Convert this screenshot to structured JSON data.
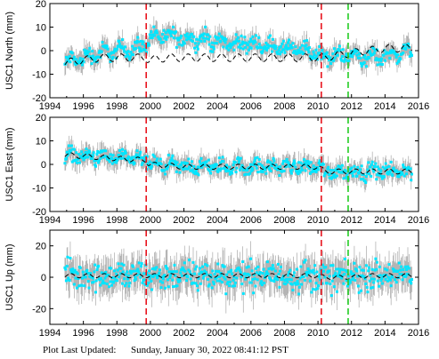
{
  "chart_data": [
    {
      "type": "scatter",
      "ylabel": "USC1 North (mm)",
      "xlim": [
        1994,
        2016
      ],
      "ylim": [
        -20,
        20
      ],
      "x_ticks": [
        "1994",
        "1996",
        "1998",
        "2000",
        "2002",
        "2004",
        "2006",
        "2008",
        "2010",
        "2012",
        "2014",
        "2016"
      ],
      "y_ticks": [
        "-20",
        "-10",
        "0",
        "10",
        "20"
      ],
      "series": [
        {
          "color": "#00e5ff",
          "x": [
            1995.0,
            1996.0,
            1997.0,
            1998.0,
            1999.0,
            1999.7,
            1999.9,
            2001.0,
            2002.0,
            2003.0,
            2004.0,
            2005.0,
            2006.0,
            2007.0,
            2008.0,
            2009.0,
            2010.0,
            2010.4,
            2011.0,
            2012.0,
            2013.0,
            2014.0,
            2015.0,
            2015.5
          ],
          "y": [
            -5,
            -3,
            -1,
            0,
            1,
            2,
            6,
            6,
            5,
            5,
            4,
            3,
            3,
            2,
            1,
            0,
            -1,
            -3,
            -2,
            -2,
            -3,
            -2,
            -1,
            0
          ]
        },
        {
          "color": "#000000",
          "x": [
            1995.0,
            1996.0,
            1997.0,
            1998.0,
            1999.0,
            1999.7,
            1999.9,
            2001.0,
            2002.0,
            2003.0,
            2004.0,
            2005.0,
            2006.0,
            2007.0,
            2008.0,
            2009.0,
            2010.0,
            2010.4,
            2011.0,
            2012.0,
            2013.0,
            2014.0,
            2015.0,
            2015.5
          ],
          "y": [
            -5,
            -4,
            -3,
            -3,
            -3,
            -3,
            -4,
            -3,
            -3,
            -3,
            -3,
            -3,
            -3,
            -3,
            -3,
            -3,
            -3,
            -3,
            -2,
            -1,
            0,
            1,
            1,
            1
          ]
        }
      ],
      "markers": [
        {
          "x": 1999.75,
          "color": "#e8141e"
        },
        {
          "x": 2010.2,
          "color": "#e8141e"
        },
        {
          "x": 2011.8,
          "color": "#22cc22"
        }
      ]
    },
    {
      "type": "scatter",
      "ylabel": "USC1 East (mm)",
      "xlim": [
        1994,
        2016
      ],
      "ylim": [
        -20,
        20
      ],
      "x_ticks": [
        "1994",
        "1996",
        "1998",
        "2000",
        "2002",
        "2004",
        "2006",
        "2008",
        "2010",
        "2012",
        "2014",
        "2016"
      ],
      "y_ticks": [
        "-20",
        "-10",
        "0",
        "10",
        "20"
      ],
      "series": [
        {
          "color": "#00e5ff",
          "x": [
            1995.0,
            1996.0,
            1997.0,
            1998.0,
            1999.0,
            1999.7,
            1999.9,
            2001.0,
            2002.0,
            2003.0,
            2004.0,
            2005.0,
            2006.0,
            2007.0,
            2008.0,
            2009.0,
            2010.0,
            2010.4,
            2011.0,
            2012.0,
            2013.0,
            2014.0,
            2015.0,
            2015.5
          ],
          "y": [
            4,
            3.5,
            3,
            2.5,
            2,
            2,
            0,
            -0.5,
            -1,
            -1,
            -1,
            -1,
            -1,
            -1,
            -1,
            -1,
            -1,
            -3,
            -3,
            -3,
            -3,
            -3,
            -3,
            -3
          ]
        },
        {
          "color": "#000000",
          "x": [
            1995.0,
            1996.0,
            1997.0,
            1998.0,
            1999.0,
            1999.7,
            1999.9,
            2001.0,
            2002.0,
            2003.0,
            2004.0,
            2005.0,
            2006.0,
            2007.0,
            2008.0,
            2009.0,
            2010.0,
            2010.4,
            2011.0,
            2012.0,
            2013.0,
            2014.0,
            2015.0,
            2015.5
          ],
          "y": [
            4,
            3.5,
            3,
            2.5,
            2,
            2,
            0,
            -0.5,
            -1,
            -1,
            -1,
            -1,
            -1,
            -1,
            -1,
            -1,
            -1,
            -3,
            -3,
            -3,
            -3,
            -3,
            -3,
            -3
          ]
        }
      ],
      "markers": [
        {
          "x": 1999.75,
          "color": "#e8141e"
        },
        {
          "x": 2010.2,
          "color": "#e8141e"
        },
        {
          "x": 2011.8,
          "color": "#22cc22"
        }
      ]
    },
    {
      "type": "scatter",
      "ylabel": "USC1 Up (mm)",
      "xlim": [
        1994,
        2016
      ],
      "ylim": [
        -30,
        30
      ],
      "x_ticks": [
        "1994",
        "1996",
        "1998",
        "2000",
        "2002",
        "2004",
        "2006",
        "2008",
        "2010",
        "2012",
        "2014",
        "2016"
      ],
      "y_ticks": [
        "-20",
        "0",
        "20"
      ],
      "series": [
        {
          "color": "#00e5ff",
          "x": [
            1995.0,
            1996.0,
            1997.0,
            1998.0,
            1999.0,
            1999.7,
            1999.9,
            2001.0,
            2002.0,
            2003.0,
            2004.0,
            2005.0,
            2006.0,
            2007.0,
            2008.0,
            2009.0,
            2010.0,
            2010.4,
            2011.0,
            2012.0,
            2013.0,
            2014.0,
            2015.0,
            2015.5
          ],
          "y": [
            1,
            1,
            1,
            1,
            1,
            1,
            1,
            1,
            1,
            1,
            1,
            1,
            1,
            1,
            1,
            1,
            1,
            0,
            0,
            0,
            1,
            1,
            1,
            1
          ]
        },
        {
          "color": "#000000",
          "x": [
            1995.0,
            1996.0,
            1997.0,
            1998.0,
            1999.0,
            1999.7,
            1999.9,
            2001.0,
            2002.0,
            2003.0,
            2004.0,
            2005.0,
            2006.0,
            2007.0,
            2008.0,
            2009.0,
            2010.0,
            2010.4,
            2011.0,
            2012.0,
            2013.0,
            2014.0,
            2015.0,
            2015.5
          ],
          "y": [
            1,
            1,
            1,
            1,
            1,
            1,
            1,
            1,
            1,
            1,
            1,
            1,
            1,
            1,
            1,
            1,
            1,
            0,
            0,
            0,
            1,
            1,
            1,
            1
          ]
        }
      ],
      "markers": [
        {
          "x": 1999.75,
          "color": "#e8141e"
        },
        {
          "x": 2010.2,
          "color": "#e8141e"
        },
        {
          "x": 2011.8,
          "color": "#22cc22"
        }
      ]
    }
  ],
  "footer": {
    "label": "Plot Last Updated:",
    "value": "Sunday, January 30, 2022 08:41:12 PST"
  }
}
